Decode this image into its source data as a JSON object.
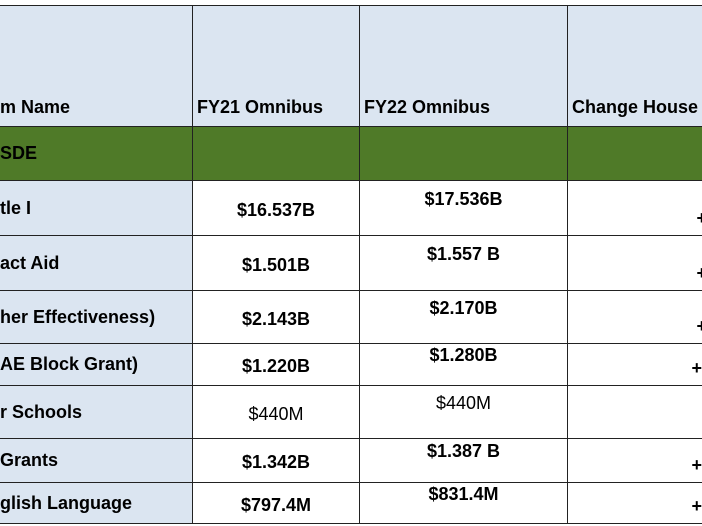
{
  "table": {
    "header": [
      "m Name",
      "FY21 Omnibus",
      "FY22 Omnibus",
      "Change House"
    ],
    "section": "SDE",
    "rows": [
      [
        "tle I",
        "$16.537B",
        "$17.536B",
        "+"
      ],
      [
        "act Aid",
        "$1.501B",
        "$1.557 B",
        "+"
      ],
      [
        "her Effectiveness)",
        "$2.143B",
        "$2.170B",
        "+"
      ],
      [
        "AE Block Grant)",
        "$1.220B",
        "$1.280B",
        "+."
      ],
      [
        "r Schools",
        "$440M",
        "$440M"
      ],
      [
        "Grants",
        "$1.342B",
        "$1.387 B",
        "+."
      ],
      [
        "glish Language",
        "$797.4M",
        "$831.4M",
        "+."
      ]
    ]
  }
}
